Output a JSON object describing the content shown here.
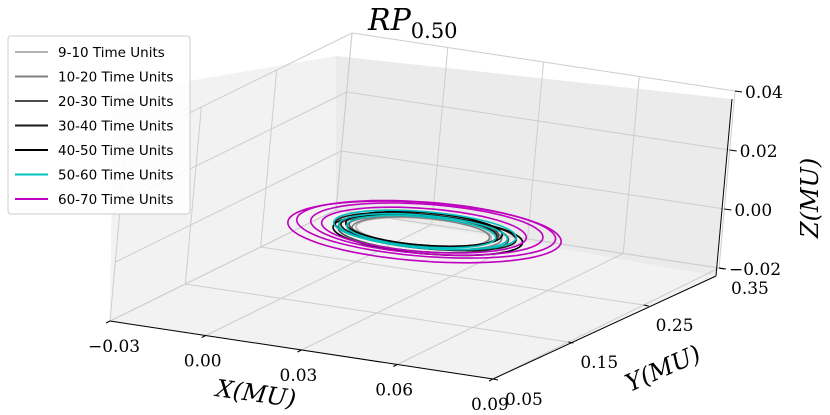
{
  "chart_data": {
    "type": "line",
    "projection": "3d",
    "title": "RP",
    "title_subscript": "0.50",
    "xlabel": "X(MU)",
    "ylabel": "Y(MU)",
    "zlabel": "Z(MU)",
    "xlim": [
      -0.03,
      0.09
    ],
    "ylim": [
      0.05,
      0.35
    ],
    "zlim": [
      -0.02,
      0.04
    ],
    "xticks": [
      "−0.03",
      "0.00",
      "0.03",
      "0.06",
      "0.09"
    ],
    "yticks": [
      "0.05",
      "0.15",
      "0.25",
      "0.35"
    ],
    "zticks": [
      "−0.02",
      "0.00",
      "0.02",
      "0.04"
    ],
    "grid": true,
    "legend_position": "top-left",
    "series": [
      {
        "name": "9-10 Time Units",
        "color": "#b3b3b3",
        "loops": [
          {
            "cx": 0.03,
            "cy": 0.205,
            "rx": 0.02,
            "ry": 0.03,
            "z": 0.0005
          }
        ]
      },
      {
        "name": "10-20 Time Units",
        "color": "#808080",
        "loops": [
          {
            "cx": 0.031,
            "cy": 0.205,
            "rx": 0.022,
            "ry": 0.034,
            "z": 0.0003
          },
          {
            "cx": 0.029,
            "cy": 0.202,
            "rx": 0.021,
            "ry": 0.032,
            "z": 0.0008
          }
        ]
      },
      {
        "name": "20-30 Time Units",
        "color": "#4d4d4d",
        "loops": [
          {
            "cx": 0.031,
            "cy": 0.2,
            "rx": 0.025,
            "ry": 0.04,
            "z": 0.0008
          },
          {
            "cx": 0.03,
            "cy": 0.205,
            "rx": 0.022,
            "ry": 0.034,
            "z": 0.0013
          }
        ]
      },
      {
        "name": "30-40 Time Units",
        "color": "#1a1a1a",
        "loops": [
          {
            "cx": 0.031,
            "cy": 0.203,
            "rx": 0.027,
            "ry": 0.037,
            "z": 0.0011
          },
          {
            "cx": 0.028,
            "cy": 0.207,
            "rx": 0.023,
            "ry": 0.035,
            "z": 0.0006
          }
        ]
      },
      {
        "name": "40-50 Time Units",
        "color": "#000000",
        "loops": [
          {
            "cx": 0.032,
            "cy": 0.202,
            "rx": 0.028,
            "ry": 0.042,
            "z": 0.0003
          },
          {
            "cx": 0.03,
            "cy": 0.205,
            "rx": 0.023,
            "ry": 0.036,
            "z": 0.0016
          }
        ]
      },
      {
        "name": "50-60 Time Units",
        "color": "#00bfbf",
        "loops": [
          {
            "cx": 0.03,
            "cy": 0.204,
            "rx": 0.025,
            "ry": 0.036,
            "z": 0.0008
          },
          {
            "cx": 0.031,
            "cy": 0.202,
            "rx": 0.027,
            "ry": 0.04,
            "z": 0.0018
          },
          {
            "cx": 0.029,
            "cy": 0.206,
            "rx": 0.022,
            "ry": 0.033,
            "z": 0.0004
          }
        ]
      },
      {
        "name": "60-70 Time Units",
        "color": "#bf00bf",
        "loops": [
          {
            "cx": 0.034,
            "cy": 0.19,
            "rx": 0.038,
            "ry": 0.06,
            "z": 0.004
          },
          {
            "cx": 0.028,
            "cy": 0.215,
            "rx": 0.04,
            "ry": 0.065,
            "z": -0.001
          },
          {
            "cx": 0.032,
            "cy": 0.2,
            "rx": 0.034,
            "ry": 0.055,
            "z": 0.0025
          },
          {
            "cx": 0.03,
            "cy": 0.205,
            "rx": 0.03,
            "ry": 0.048,
            "z": 0.0012
          }
        ]
      }
    ]
  }
}
